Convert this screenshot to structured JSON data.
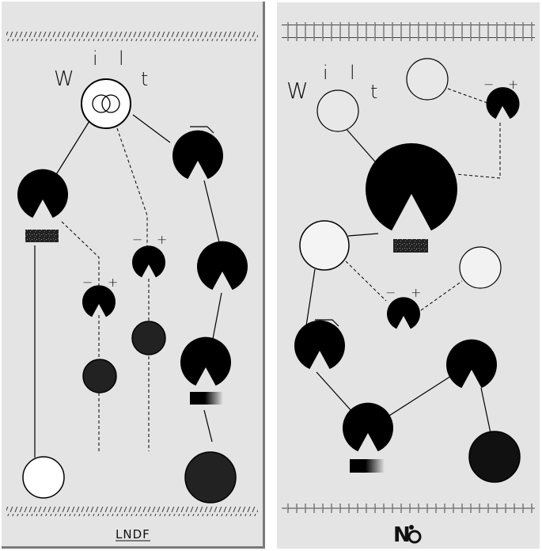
{
  "panels": [
    {
      "id": "left",
      "title_letters": [
        "W",
        "i",
        "l",
        "t"
      ],
      "logo": "LNDF"
    },
    {
      "id": "right",
      "title_letters": [
        "W",
        "i",
        "l",
        "t"
      ],
      "logo": "N"
    }
  ],
  "polarity": {
    "minus": "−",
    "plus": "+"
  },
  "colors": {
    "panel": "#e4e4e4",
    "ink": "#000000",
    "jack_dark": "#222222"
  }
}
